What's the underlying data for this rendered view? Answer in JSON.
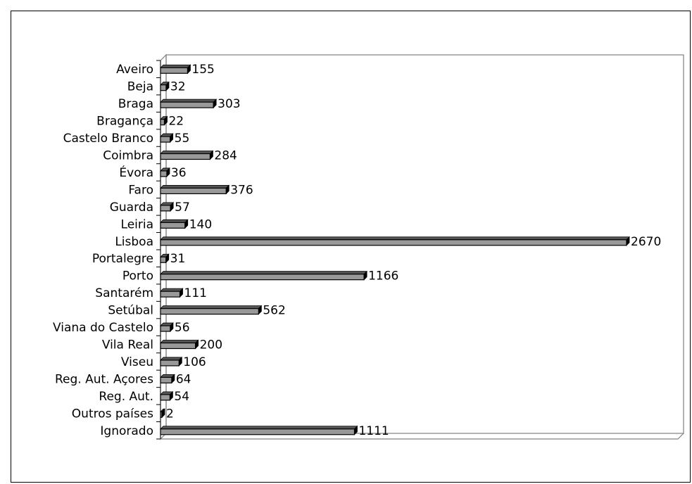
{
  "chart_data": {
    "type": "bar",
    "orientation": "horizontal",
    "style": "3d",
    "title": "",
    "xlabel": "",
    "ylabel": "",
    "grid": false,
    "legend": "none",
    "xlim": [
      0,
      2700
    ],
    "categories": [
      "Aveiro",
      "Beja",
      "Braga",
      "Bragança",
      "Castelo Branco",
      "Coimbra",
      "Évora",
      "Faro",
      "Guarda",
      "Leiria",
      "Lisboa",
      "Portalegre",
      "Porto",
      "Santarém",
      "Setúbal",
      "Viana do Castelo",
      "Vila Real",
      "Viseu",
      "Reg. Aut. Açores",
      "Reg. Aut.",
      "Outros países",
      "Ignorado"
    ],
    "values": [
      155,
      32,
      303,
      22,
      55,
      284,
      36,
      376,
      57,
      140,
      2670,
      31,
      1166,
      111,
      562,
      56,
      200,
      106,
      64,
      54,
      2,
      1111
    ],
    "value_labels": [
      "155",
      "32",
      "303",
      "22",
      "55",
      "284",
      "36",
      "376",
      "57",
      "140",
      "2670",
      "31",
      "1166",
      "111",
      "562",
      "56",
      "200",
      "106",
      "64",
      "54",
      "2",
      "1111"
    ],
    "colors": {
      "bar_front": "#999999",
      "bar_side": "#000000",
      "bar_top": "#555555",
      "walls": "#808080",
      "background": "#ffffff"
    }
  }
}
